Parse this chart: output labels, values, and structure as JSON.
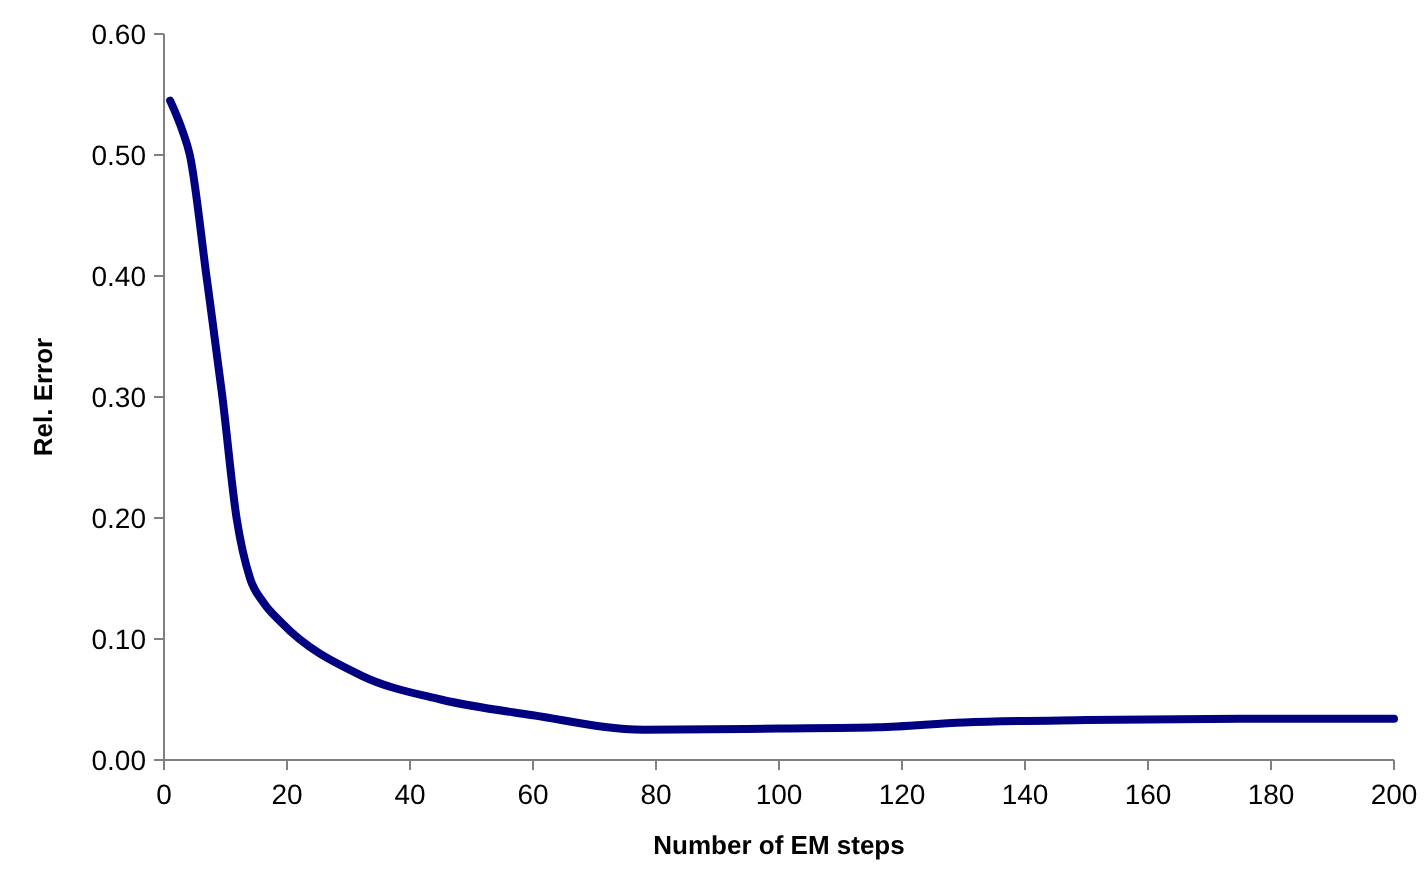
{
  "chart_data": {
    "type": "line",
    "xlabel": "Number of EM steps",
    "ylabel": "Rel. Error",
    "series": [
      {
        "color": "#000080",
        "x": [
          1,
          3,
          4.2,
          6.9,
          9.5,
          11.8,
          14,
          16.2,
          19,
          32,
          45,
          60,
          78,
          100,
          116,
          130,
          150,
          175,
          200
        ],
        "values": [
          0.545,
          0.52,
          0.5,
          0.4,
          0.3,
          0.2,
          0.15,
          0.13,
          0.114,
          0.07,
          0.05,
          0.037,
          0.025,
          0.026,
          0.027,
          0.031,
          0.033,
          0.034,
          0.034
        ]
      }
    ],
    "xlim": [
      0,
      200
    ],
    "xticks": [
      0,
      20,
      40,
      60,
      80,
      100,
      120,
      140,
      160,
      180,
      200
    ],
    "ylim": [
      0,
      0.6
    ],
    "yticks": [
      {
        "value": 0,
        "label": "0.00"
      },
      {
        "value": 0.1,
        "label": "0.10"
      },
      {
        "value": 0.2,
        "label": "0.20"
      },
      {
        "value": 0.3,
        "label": "0.30"
      },
      {
        "value": 0.4,
        "label": "0.40"
      },
      {
        "value": 0.5,
        "label": "0.50"
      },
      {
        "value": 0.6,
        "label": "0.60"
      }
    ],
    "grid": false,
    "marker": "none",
    "line_style": "solid"
  }
}
